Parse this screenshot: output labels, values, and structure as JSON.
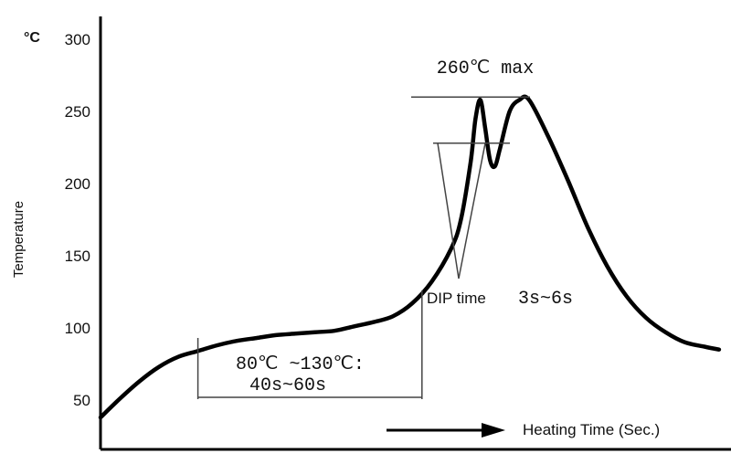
{
  "chart_data": {
    "type": "line",
    "title": "",
    "ylabel": "Temperature",
    "y_unit": "°C",
    "xlabel": "Heating Time (Sec.)",
    "ylim": [
      30,
      300
    ],
    "y_ticks": [
      50,
      100,
      150,
      200,
      250,
      300
    ],
    "y_tick_labels": [
      "50",
      "100",
      "150",
      "200",
      "250",
      "300"
    ],
    "grid": false,
    "series": [
      {
        "curve_points": [
          [
            0,
            38
          ],
          [
            4,
            51
          ],
          [
            8,
            63
          ],
          [
            12,
            73
          ],
          [
            16,
            80
          ],
          [
            20,
            84
          ],
          [
            24,
            88
          ],
          [
            28,
            91
          ],
          [
            32,
            93
          ],
          [
            36,
            95
          ],
          [
            40,
            96
          ],
          [
            44,
            97
          ],
          [
            48,
            98
          ],
          [
            52,
            101
          ],
          [
            56,
            104
          ],
          [
            60,
            108
          ],
          [
            64,
            117
          ],
          [
            68,
            132
          ],
          [
            72,
            155
          ],
          [
            74,
            175
          ],
          [
            76,
            215
          ],
          [
            77,
            245
          ],
          [
            78,
            258
          ],
          [
            79,
            238
          ],
          [
            80,
            216
          ],
          [
            81,
            212
          ],
          [
            82,
            224
          ],
          [
            84,
            250
          ],
          [
            86,
            258
          ],
          [
            88,
            258
          ],
          [
            92,
            232
          ],
          [
            96,
            202
          ],
          [
            100,
            170
          ],
          [
            104,
            143
          ],
          [
            108,
            122
          ],
          [
            112,
            107
          ],
          [
            116,
            97
          ],
          [
            120,
            90
          ],
          [
            124,
            87
          ],
          [
            127,
            85
          ]
        ]
      }
    ],
    "annotations": {
      "peak_label": "260℃ max",
      "preheat_line1": "80℃ ~130℃:",
      "preheat_line2": "40s~60s",
      "dip_label": "DIP time",
      "dip_duration": "3s~6s",
      "peak_max_value": 260,
      "dip_reference_value": 228,
      "preheat_start_time": 20,
      "preheat_end_time": 66
    }
  }
}
